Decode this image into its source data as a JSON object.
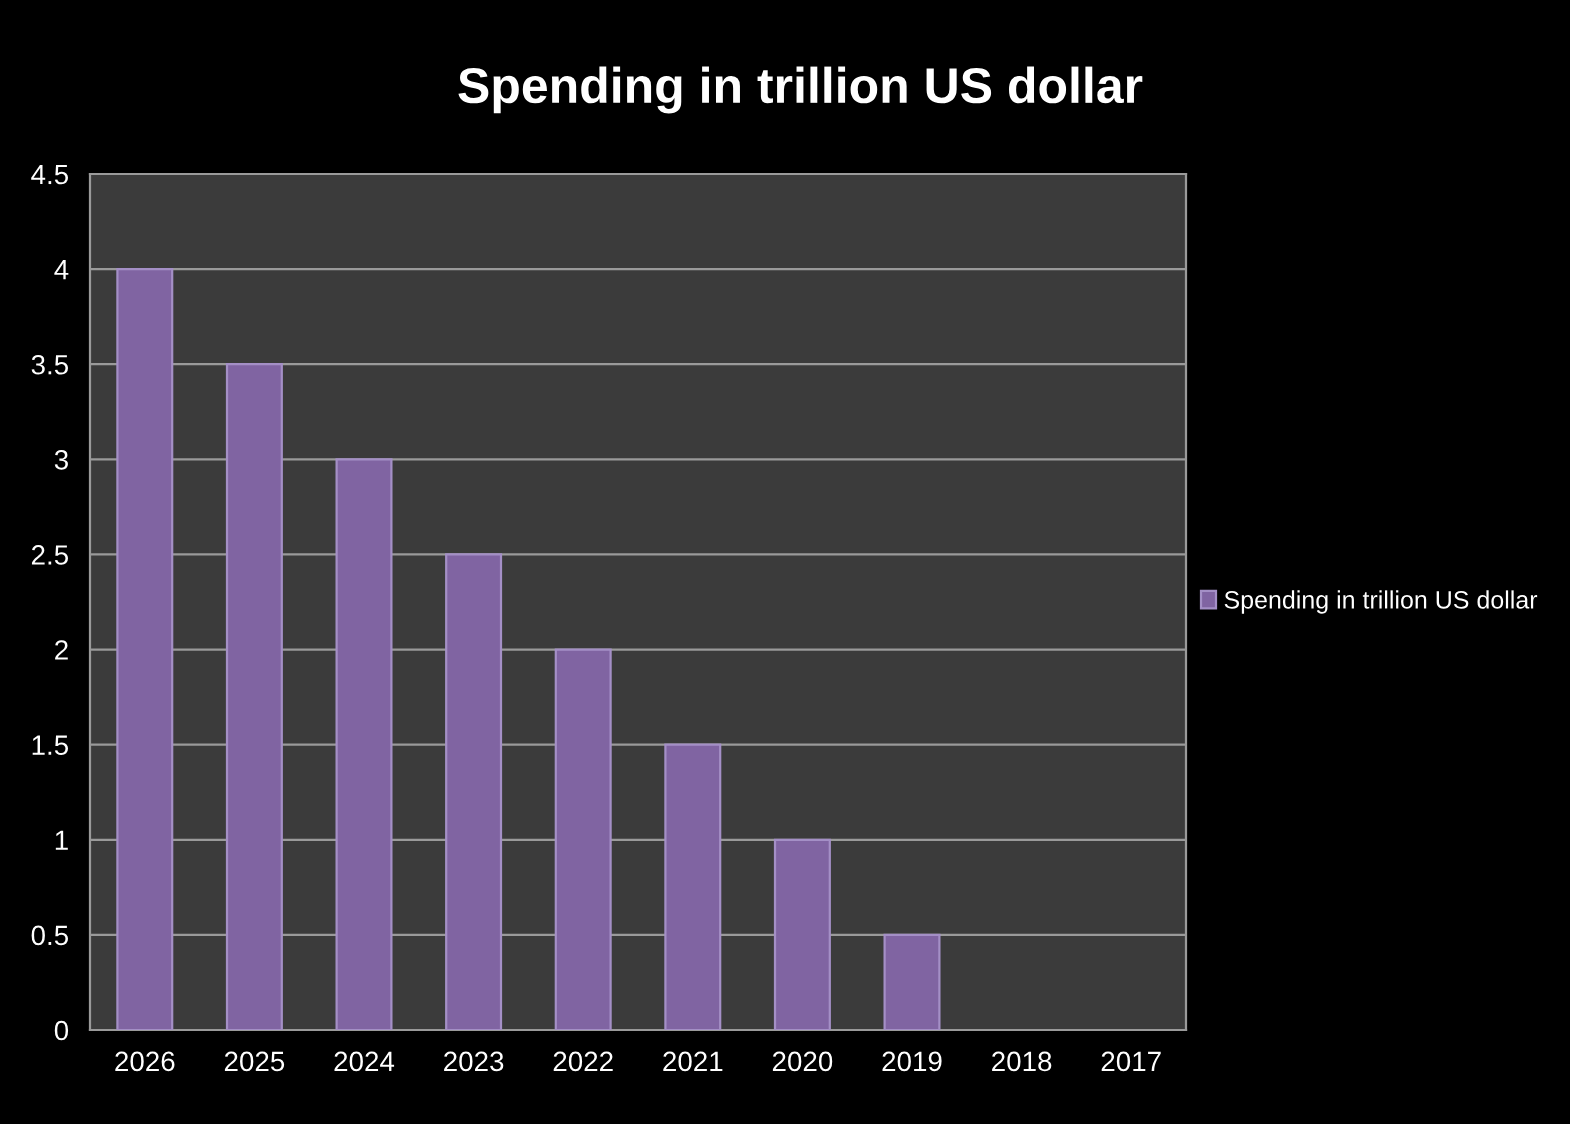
{
  "chart_data": {
    "type": "bar",
    "title": "Spending in trillion US dollar",
    "categories": [
      "2026",
      "2025",
      "2024",
      "2023",
      "2022",
      "2021",
      "2020",
      "2019",
      "2018",
      "2017"
    ],
    "series": [
      {
        "name": "Spending in trillion US dollar",
        "color": "#8064a2",
        "values": [
          4,
          3.5,
          3,
          2.5,
          2,
          1.5,
          1,
          0.5,
          0,
          0
        ]
      }
    ],
    "ylim": [
      0,
      4.5
    ],
    "yticks": [
      0,
      0.5,
      1,
      1.5,
      2,
      2.5,
      3,
      3.5,
      4,
      4.5
    ],
    "grid": "y",
    "legend": "right"
  }
}
